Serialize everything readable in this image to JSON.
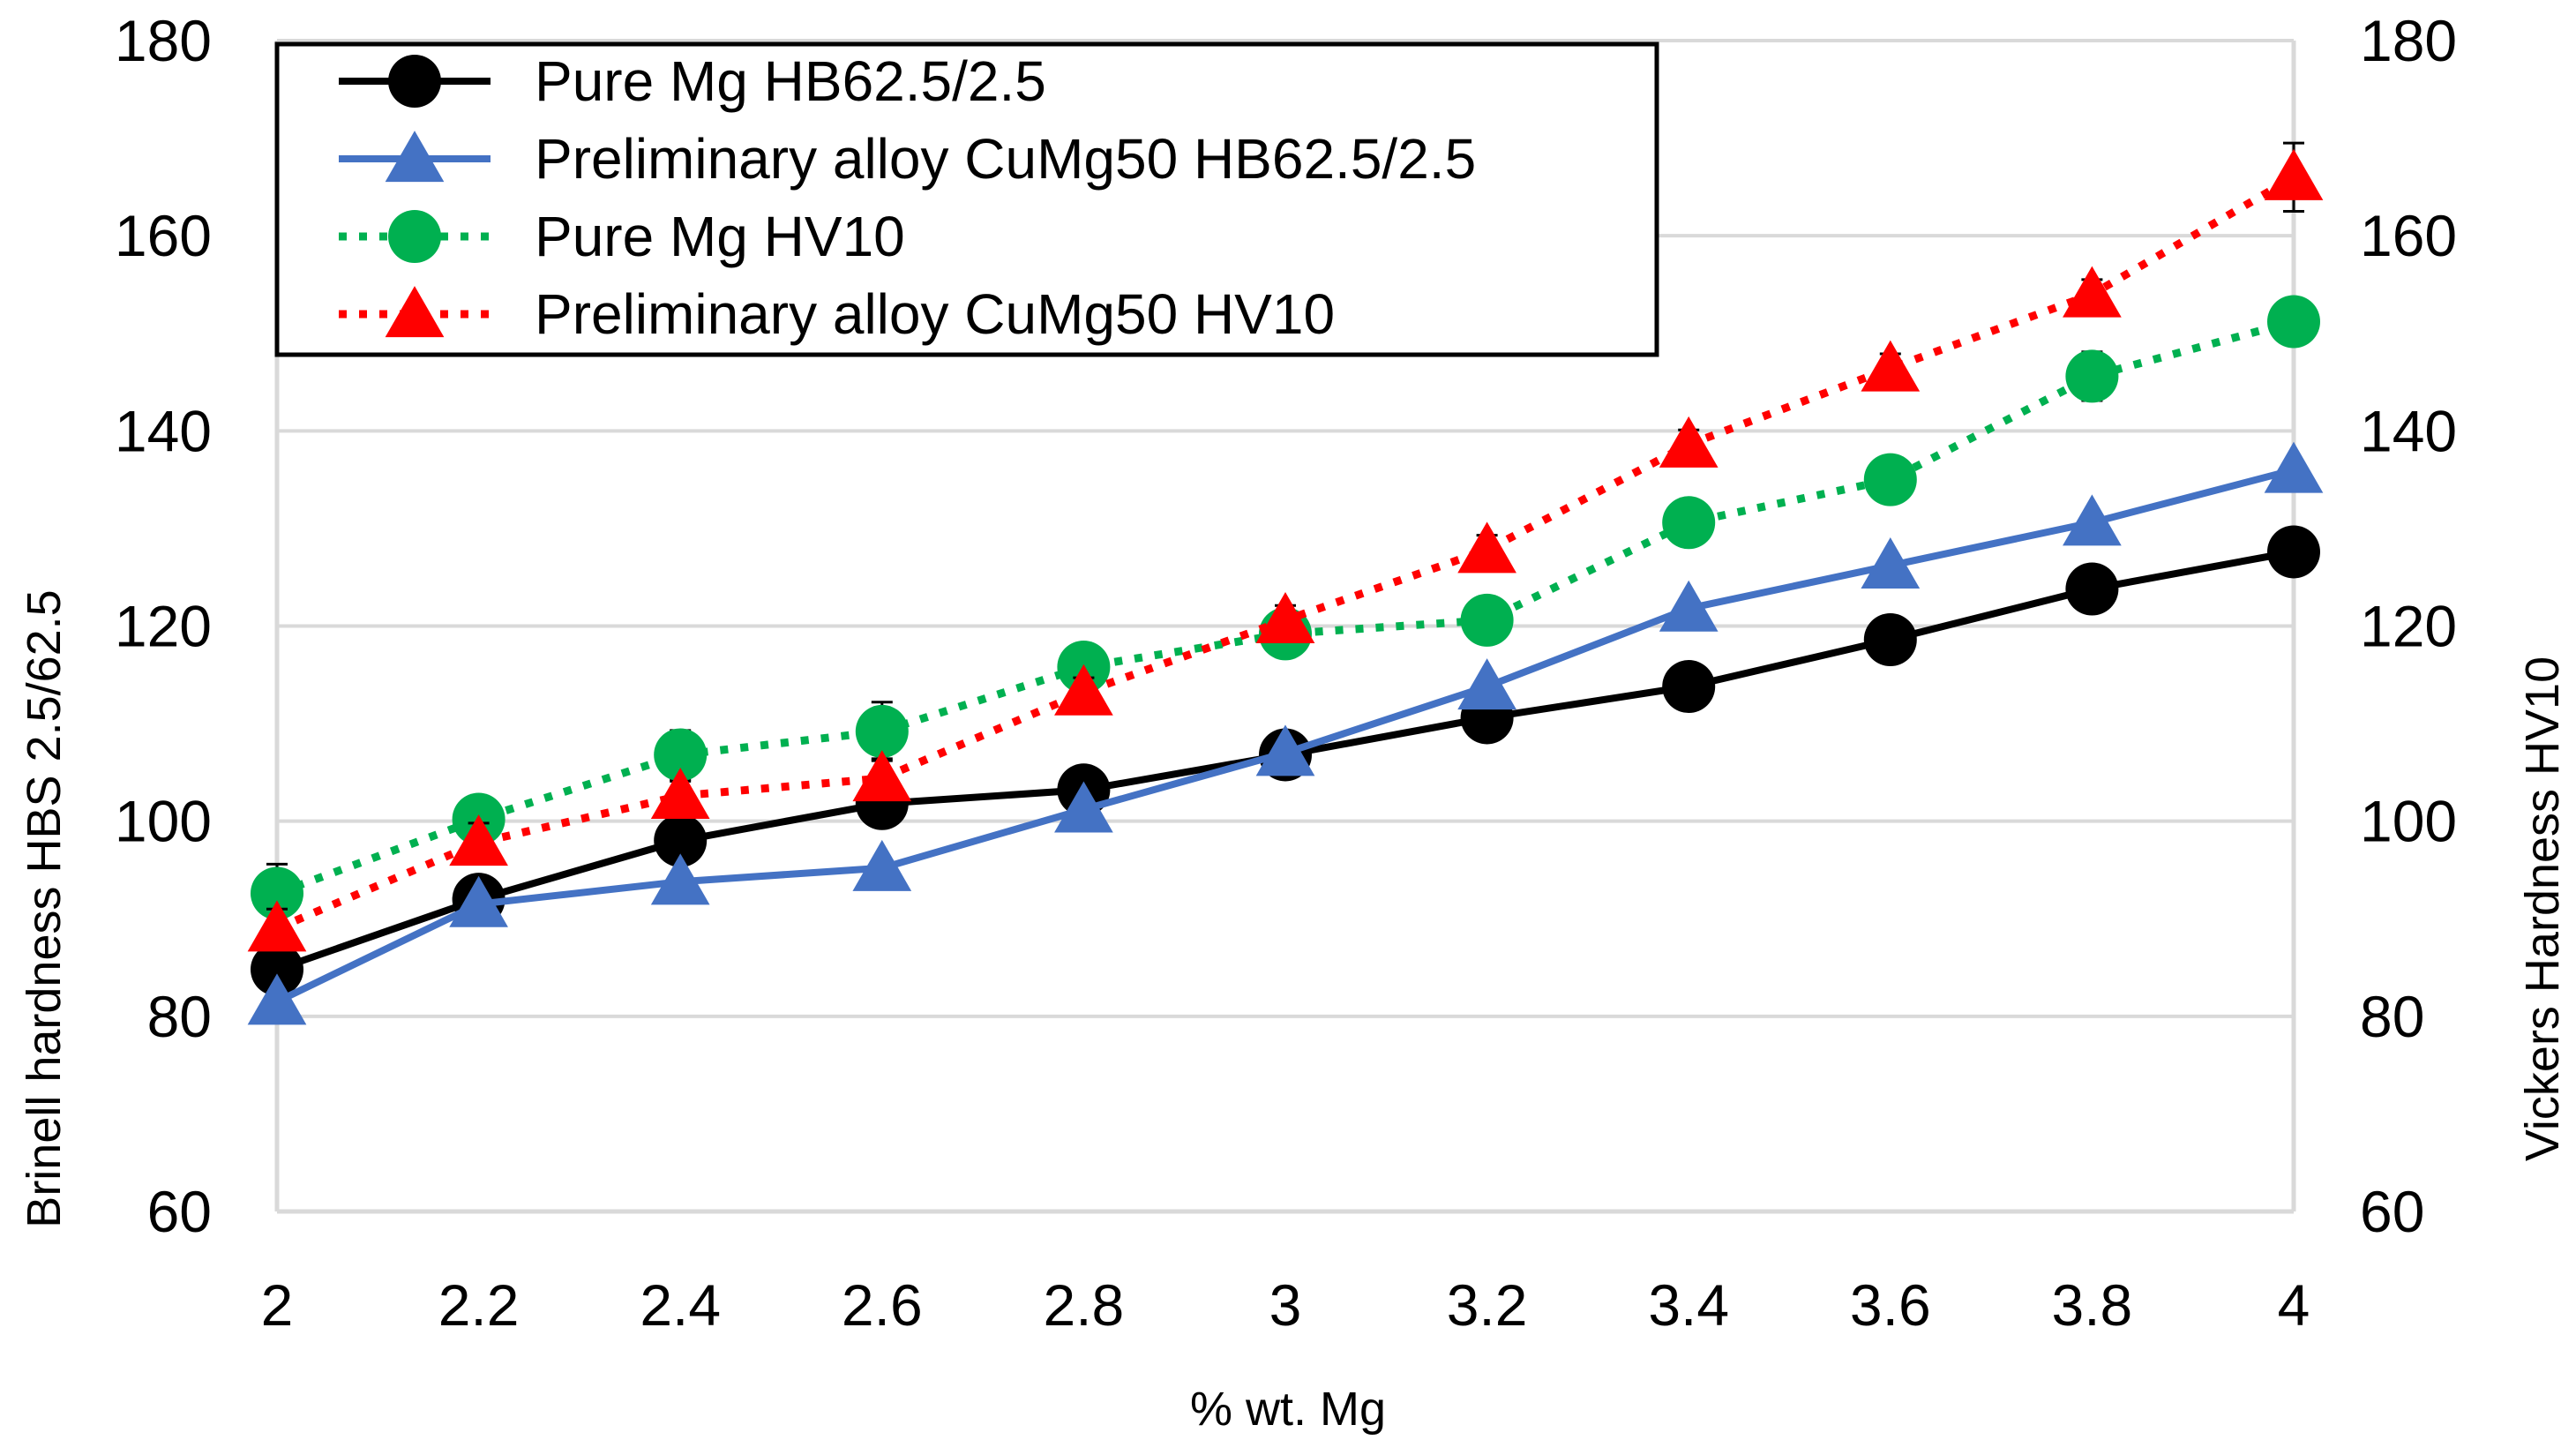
{
  "chart_data": {
    "type": "line",
    "title": "",
    "xlabel": "% wt. Mg",
    "ylabel_left": "Brinell hardness HBS 2.5/62.5",
    "ylabel_right": "Vickers Hardness HV10",
    "xlim": [
      2,
      4
    ],
    "ylim": [
      60,
      180
    ],
    "x": [
      2,
      2.2,
      2.4,
      2.6,
      2.8,
      3,
      3.2,
      3.4,
      3.6,
      3.8,
      4
    ],
    "x_tick_labels": [
      "2",
      "2.2",
      "2.4",
      "2.6",
      "2.8",
      "3",
      "3.2",
      "3.4",
      "3.6",
      "3.8",
      "4"
    ],
    "y_tick_labels": [
      "60",
      "80",
      "100",
      "120",
      "140",
      "160",
      "180"
    ],
    "y_ticks": [
      60,
      80,
      100,
      120,
      140,
      160,
      180
    ],
    "grid": true,
    "legend_position": "top-left",
    "series": [
      {
        "name": "Pure Mg HB62.5/2.5",
        "axis": "left",
        "color": "#000000",
        "line_style": "solid",
        "marker": "circle",
        "values": [
          84.8,
          92.0,
          98.0,
          101.8,
          103.2,
          106.8,
          110.6,
          113.8,
          118.6,
          123.8,
          127.6
        ],
        "errors": [
          1.0,
          1.2,
          1.2,
          1.0,
          1.0,
          1.2,
          1.0,
          1.0,
          1.0,
          1.0,
          1.0
        ]
      },
      {
        "name": "Preliminary alloy CuMg50 HB62.5/2.5",
        "axis": "left",
        "color": "#4472C4",
        "line_style": "solid",
        "marker": "triangle",
        "values": [
          81.5,
          91.5,
          93.8,
          95.2,
          101.2,
          107.0,
          113.8,
          121.8,
          126.2,
          130.6,
          136.0
        ],
        "errors": [
          0.0,
          0.0,
          0.0,
          0.0,
          0.0,
          0.0,
          0.0,
          0.0,
          0.0,
          0.0,
          0.0
        ]
      },
      {
        "name": "Pure Mg HV10",
        "axis": "right",
        "color": "#00B050",
        "line_style": "dotted",
        "marker": "circle",
        "values": [
          92.6,
          100.2,
          106.8,
          109.2,
          115.8,
          119.2,
          120.6,
          130.6,
          135.0,
          145.6,
          151.2
        ],
        "errors": [
          3.0,
          2.0,
          2.5,
          3.0,
          1.5,
          1.5,
          1.0,
          1.5,
          1.5,
          2.5,
          1.5
        ]
      },
      {
        "name": "Preliminary alloy CuMg50 HV10",
        "axis": "right",
        "color": "#FF0000",
        "line_style": "dotted",
        "marker": "triangle",
        "values": [
          89.0,
          97.8,
          102.6,
          104.4,
          113.2,
          120.6,
          127.8,
          138.6,
          146.4,
          154.0,
          166.0
        ],
        "errors": [
          2.0,
          2.0,
          1.5,
          2.0,
          1.5,
          1.5,
          1.5,
          1.5,
          1.5,
          1.5,
          3.5
        ]
      }
    ]
  }
}
